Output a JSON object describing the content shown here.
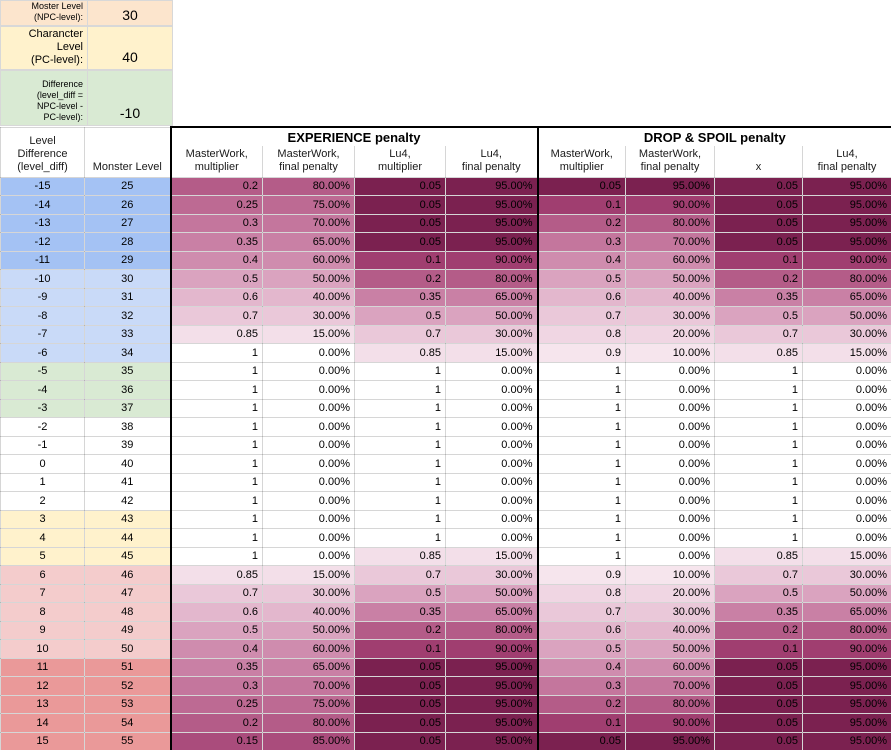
{
  "inputs": [
    {
      "label": "Moster Level\n(NPC-level):",
      "value": "30",
      "bg": "#fce5cd"
    },
    {
      "label": "Charancter\nLevel\n(PC-level):",
      "value": "40",
      "bg": "#fff2cc"
    },
    {
      "label": "Difference\n(level_diff =\nNPC-level -\nPC-level):",
      "value": "-10",
      "bg": "#d9ead3"
    }
  ],
  "table": {
    "corner_headers": {
      "level_difference": "Level\nDifference\n(level_diff)",
      "monster_level": "Monster Level"
    },
    "groups": {
      "experience": "EXPERIENCE penalty",
      "drop_spoil": "DROP & SPOIL penalty"
    },
    "columns": [
      "MasterWork,\nmultiplier",
      "MasterWork,\nfinal penalty",
      "Lu4,\nmultiplier",
      "Lu4,\nfinal penalty",
      "MasterWork,\nmultiplier",
      "MasterWork,\nfinal penalty",
      "x",
      "Lu4,\nfinal penalty"
    ],
    "rows": [
      {
        "diff": "-15",
        "level": "25",
        "band": "far_below",
        "cells": [
          [
            "0.2",
            80
          ],
          [
            "0.05",
            95
          ],
          [
            "0.05",
            95
          ],
          [
            "0.05",
            95
          ]
        ]
      },
      {
        "diff": "-14",
        "level": "26",
        "band": "far_below",
        "cells": [
          [
            "0.25",
            75
          ],
          [
            "0.05",
            95
          ],
          [
            "0.1",
            90
          ],
          [
            "0.05",
            95
          ]
        ]
      },
      {
        "diff": "-13",
        "level": "27",
        "band": "far_below",
        "cells": [
          [
            "0.3",
            70
          ],
          [
            "0.05",
            95
          ],
          [
            "0.2",
            80
          ],
          [
            "0.05",
            95
          ]
        ]
      },
      {
        "diff": "-12",
        "level": "28",
        "band": "far_below",
        "cells": [
          [
            "0.35",
            65
          ],
          [
            "0.05",
            95
          ],
          [
            "0.3",
            70
          ],
          [
            "0.05",
            95
          ]
        ]
      },
      {
        "diff": "-11",
        "level": "29",
        "band": "far_below",
        "cells": [
          [
            "0.4",
            60
          ],
          [
            "0.1",
            90
          ],
          [
            "0.4",
            60
          ],
          [
            "0.1",
            90
          ]
        ]
      },
      {
        "diff": "-10",
        "level": "30",
        "band": "below",
        "cells": [
          [
            "0.5",
            50
          ],
          [
            "0.2",
            80
          ],
          [
            "0.5",
            50
          ],
          [
            "0.2",
            80
          ]
        ]
      },
      {
        "diff": "-9",
        "level": "31",
        "band": "below",
        "cells": [
          [
            "0.6",
            40
          ],
          [
            "0.35",
            65
          ],
          [
            "0.6",
            40
          ],
          [
            "0.35",
            65
          ]
        ]
      },
      {
        "diff": "-8",
        "level": "32",
        "band": "below",
        "cells": [
          [
            "0.7",
            30
          ],
          [
            "0.5",
            50
          ],
          [
            "0.7",
            30
          ],
          [
            "0.5",
            50
          ]
        ]
      },
      {
        "diff": "-7",
        "level": "33",
        "band": "below",
        "cells": [
          [
            "0.85",
            15
          ],
          [
            "0.7",
            30
          ],
          [
            "0.8",
            20
          ],
          [
            "0.7",
            30
          ]
        ]
      },
      {
        "diff": "-6",
        "level": "34",
        "band": "below",
        "cells": [
          [
            "1",
            0
          ],
          [
            "0.85",
            15
          ],
          [
            "0.9",
            10
          ],
          [
            "0.85",
            15
          ]
        ]
      },
      {
        "diff": "-5",
        "level": "35",
        "band": "slightly_below",
        "cells": [
          [
            "1",
            0
          ],
          [
            "1",
            0
          ],
          [
            "1",
            0
          ],
          [
            "1",
            0
          ]
        ]
      },
      {
        "diff": "-4",
        "level": "36",
        "band": "slightly_below",
        "cells": [
          [
            "1",
            0
          ],
          [
            "1",
            0
          ],
          [
            "1",
            0
          ],
          [
            "1",
            0
          ]
        ]
      },
      {
        "diff": "-3",
        "level": "37",
        "band": "slightly_below",
        "cells": [
          [
            "1",
            0
          ],
          [
            "1",
            0
          ],
          [
            "1",
            0
          ],
          [
            "1",
            0
          ]
        ]
      },
      {
        "diff": "-2",
        "level": "38",
        "band": "even",
        "cells": [
          [
            "1",
            0
          ],
          [
            "1",
            0
          ],
          [
            "1",
            0
          ],
          [
            "1",
            0
          ]
        ]
      },
      {
        "diff": "-1",
        "level": "39",
        "band": "even",
        "cells": [
          [
            "1",
            0
          ],
          [
            "1",
            0
          ],
          [
            "1",
            0
          ],
          [
            "1",
            0
          ]
        ]
      },
      {
        "diff": "0",
        "level": "40",
        "band": "even",
        "cells": [
          [
            "1",
            0
          ],
          [
            "1",
            0
          ],
          [
            "1",
            0
          ],
          [
            "1",
            0
          ]
        ]
      },
      {
        "diff": "1",
        "level": "41",
        "band": "even",
        "cells": [
          [
            "1",
            0
          ],
          [
            "1",
            0
          ],
          [
            "1",
            0
          ],
          [
            "1",
            0
          ]
        ]
      },
      {
        "diff": "2",
        "level": "42",
        "band": "even",
        "cells": [
          [
            "1",
            0
          ],
          [
            "1",
            0
          ],
          [
            "1",
            0
          ],
          [
            "1",
            0
          ]
        ]
      },
      {
        "diff": "3",
        "level": "43",
        "band": "slightly_above",
        "cells": [
          [
            "1",
            0
          ],
          [
            "1",
            0
          ],
          [
            "1",
            0
          ],
          [
            "1",
            0
          ]
        ]
      },
      {
        "diff": "4",
        "level": "44",
        "band": "slightly_above",
        "cells": [
          [
            "1",
            0
          ],
          [
            "1",
            0
          ],
          [
            "1",
            0
          ],
          [
            "1",
            0
          ]
        ]
      },
      {
        "diff": "5",
        "level": "45",
        "band": "slightly_above",
        "cells": [
          [
            "1",
            0
          ],
          [
            "0.85",
            15
          ],
          [
            "1",
            0
          ],
          [
            "0.85",
            15
          ]
        ]
      },
      {
        "diff": "6",
        "level": "46",
        "band": "above",
        "cells": [
          [
            "0.85",
            15
          ],
          [
            "0.7",
            30
          ],
          [
            "0.9",
            10
          ],
          [
            "0.7",
            30
          ]
        ]
      },
      {
        "diff": "7",
        "level": "47",
        "band": "above",
        "cells": [
          [
            "0.7",
            30
          ],
          [
            "0.5",
            50
          ],
          [
            "0.8",
            20
          ],
          [
            "0.5",
            50
          ]
        ]
      },
      {
        "diff": "8",
        "level": "48",
        "band": "above",
        "cells": [
          [
            "0.6",
            40
          ],
          [
            "0.35",
            65
          ],
          [
            "0.7",
            30
          ],
          [
            "0.35",
            65
          ]
        ]
      },
      {
        "diff": "9",
        "level": "49",
        "band": "above",
        "cells": [
          [
            "0.5",
            50
          ],
          [
            "0.2",
            80
          ],
          [
            "0.6",
            40
          ],
          [
            "0.2",
            80
          ]
        ]
      },
      {
        "diff": "10",
        "level": "50",
        "band": "above",
        "cells": [
          [
            "0.4",
            60
          ],
          [
            "0.1",
            90
          ],
          [
            "0.5",
            50
          ],
          [
            "0.1",
            90
          ]
        ]
      },
      {
        "diff": "11",
        "level": "51",
        "band": "far_above",
        "cells": [
          [
            "0.35",
            65
          ],
          [
            "0.05",
            95
          ],
          [
            "0.4",
            60
          ],
          [
            "0.05",
            95
          ]
        ]
      },
      {
        "diff": "12",
        "level": "52",
        "band": "far_above",
        "cells": [
          [
            "0.3",
            70
          ],
          [
            "0.05",
            95
          ],
          [
            "0.3",
            70
          ],
          [
            "0.05",
            95
          ]
        ]
      },
      {
        "diff": "13",
        "level": "53",
        "band": "far_above",
        "cells": [
          [
            "0.25",
            75
          ],
          [
            "0.05",
            95
          ],
          [
            "0.2",
            80
          ],
          [
            "0.05",
            95
          ]
        ]
      },
      {
        "diff": "14",
        "level": "54",
        "band": "far_above",
        "cells": [
          [
            "0.2",
            80
          ],
          [
            "0.05",
            95
          ],
          [
            "0.1",
            90
          ],
          [
            "0.05",
            95
          ]
        ]
      },
      {
        "diff": "15",
        "level": "55",
        "band": "far_above",
        "cells": [
          [
            "0.15",
            85
          ],
          [
            "0.05",
            95
          ],
          [
            "0.05",
            95
          ],
          [
            "0.05",
            95
          ]
        ]
      }
    ]
  },
  "colors": {
    "bands": {
      "far_below": "#a4c2f4",
      "below": "#c9daf8",
      "slightly_below": "#d9ead3",
      "even": "#ffffff",
      "slightly_above": "#fff2cc",
      "above": "#f4cccc",
      "far_above": "#ea9999"
    },
    "heat_scale": {
      "0": "#ffffff",
      "10": "#f6e5ed",
      "15": "#f3dfe9",
      "20": "#f0d6e3",
      "30": "#eac8d9",
      "40": "#e3b7cd",
      "50": "#daa3bf",
      "60": "#cf8cae",
      "65": "#c980a5",
      "70": "#c4769d",
      "75": "#bd6a93",
      "80": "#b45c88",
      "85": "#aa4c7c",
      "90": "#a03e70",
      "95": "#7b2150"
    }
  }
}
